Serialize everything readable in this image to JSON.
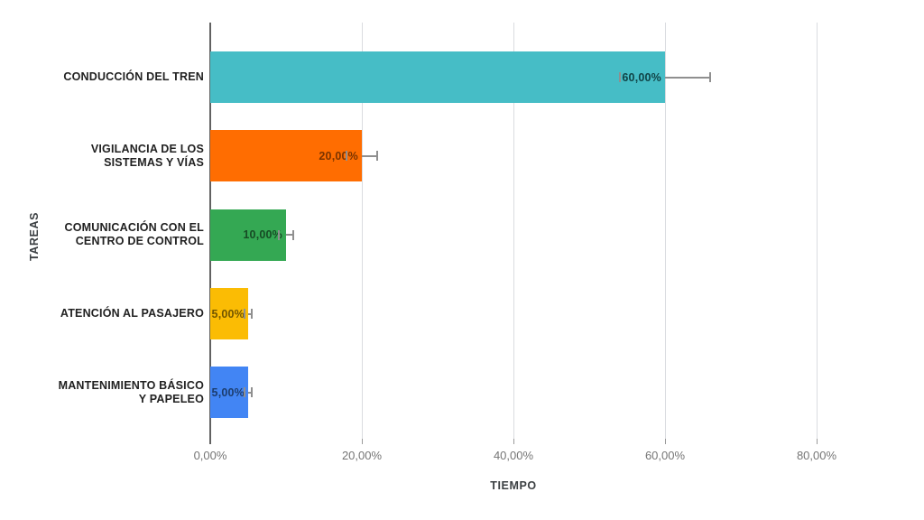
{
  "chart_data": {
    "type": "bar",
    "orientation": "horizontal",
    "xlabel": "TIEMPO",
    "ylabel": "TAREAS",
    "categories": [
      "CONDUCCIÓN DEL TREN",
      "VIGILANCIA DE LOS\nSISTEMAS Y VÍAS",
      "COMUNICACIÓN CON EL\nCENTRO DE CONTROL",
      "ATENCIÓN AL PASAJERO",
      "MANTENIMIENTO BÁSICO\nY PAPELEO"
    ],
    "values": [
      60,
      20,
      10,
      5,
      5
    ],
    "data_labels": [
      "60,00%",
      "20,00%",
      "10,00%",
      "5,00%",
      "5,00%"
    ],
    "bar_colors": [
      "#46BDC6",
      "#FF6D01",
      "#34A853",
      "#FBBC04",
      "#4285F4"
    ],
    "data_label_colors": [
      "#104346",
      "#7b3400",
      "#174b25",
      "#715500",
      "#1c3d6e"
    ],
    "error_bars": {
      "relative_percent": 10,
      "lower": [
        54,
        18,
        9,
        4.5,
        4.5
      ],
      "upper": [
        66,
        22,
        11,
        5.5,
        5.5
      ],
      "color": "#8f8f8f"
    },
    "x_ticks": [
      {
        "value": 0,
        "label": "0,00%"
      },
      {
        "value": 20,
        "label": "20,00%"
      },
      {
        "value": 40,
        "label": "40,00%"
      },
      {
        "value": 60,
        "label": "60,00%"
      },
      {
        "value": 80,
        "label": "80,00%"
      }
    ],
    "xlim": [
      0,
      94
    ],
    "grid": true,
    "legend": "none",
    "background": "#ffffff"
  }
}
